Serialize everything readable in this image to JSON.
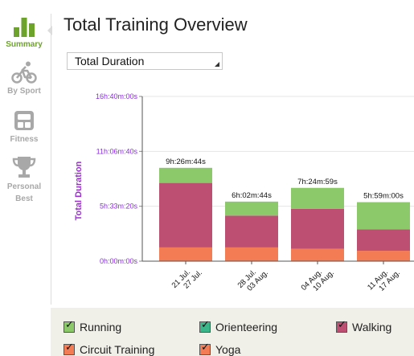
{
  "sidebar": {
    "items": [
      {
        "label": "Summary",
        "icon": "bar-chart-icon",
        "active": true
      },
      {
        "label": "By Sport",
        "icon": "cyclist-icon",
        "active": false
      },
      {
        "label": "Fitness",
        "icon": "scale-icon",
        "active": false
      },
      {
        "label": "Personal Best",
        "label_lines": [
          "Personal",
          "Best"
        ],
        "icon": "trophy-icon",
        "active": false
      }
    ]
  },
  "header": {
    "title": "Total Training Overview"
  },
  "metric_select": {
    "value": "Total Duration"
  },
  "colors": {
    "running": "#8bc96a",
    "orienteering": "#3bb58a",
    "walking": "#bd4f73",
    "circuit_training": "#f47c55",
    "yoga": "#f47c55",
    "accent": "#6ea32b",
    "axis_label": "#9932cc"
  },
  "chart_data": {
    "type": "bar",
    "stacked": true,
    "ylabel": "Total Duration",
    "ytick_labels": [
      "0h:00m:00s",
      "5h:33m:20s",
      "11h:06m:40s",
      "16h:40m:00s"
    ],
    "ytick_values_seconds": [
      0,
      20000,
      40000,
      60000
    ],
    "ylim_seconds": [
      0,
      60000
    ],
    "grid": true,
    "categories": [
      [
        "21 Jul.",
        "27 Jul."
      ],
      [
        "28 Jul.",
        "03 Aug."
      ],
      [
        "04 Aug.",
        "10 Aug."
      ],
      [
        "11 Aug.",
        "17 Aug."
      ]
    ],
    "totals": [
      "9h:26m:44s",
      "6h:02m:44s",
      "7h:24m:59s",
      "5h:59m:00s"
    ],
    "series": [
      {
        "name": "Circuit Training",
        "color": "#f47c55",
        "values_seconds": [
          5000,
          5000,
          4500,
          3800
        ]
      },
      {
        "name": "Walking",
        "color": "#bd4f73",
        "values_seconds": [
          23500,
          11600,
          14600,
          7800
        ]
      },
      {
        "name": "Running",
        "color": "#8bc96a",
        "values_seconds": [
          5500,
          5100,
          7600,
          9900
        ]
      }
    ]
  },
  "legend": {
    "items": [
      {
        "label": "Running",
        "color": "#8bc96a",
        "checked": true
      },
      {
        "label": "Orienteering",
        "color": "#3bb58a",
        "checked": true
      },
      {
        "label": "Walking",
        "color": "#bd4f73",
        "checked": true
      },
      {
        "label": "Circuit Training",
        "color": "#f47c55",
        "checked": true
      },
      {
        "label": "Yoga",
        "color": "#f47c55",
        "checked": true
      }
    ]
  }
}
